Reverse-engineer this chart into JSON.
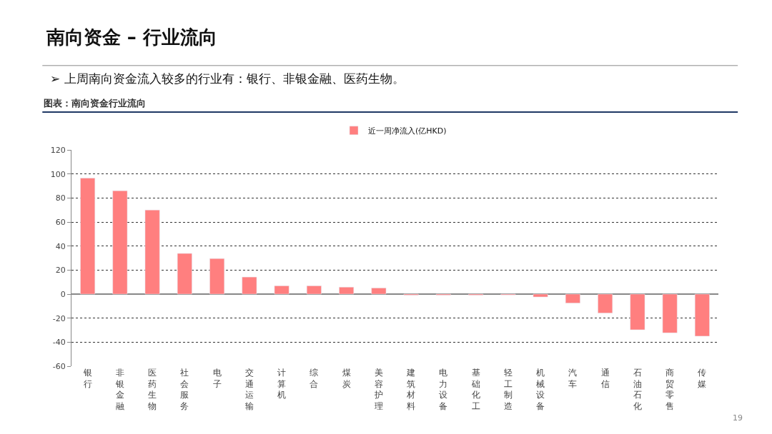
{
  "chart_data": {
    "type": "bar",
    "title": "南向资金 – 行业流向",
    "subtitle": "➢ 上周南向资金流入较多的行业有：银行、非银金融、医药生物。",
    "annotations": [
      "图表：南向资金行业流向",
      "19"
    ],
    "categories": [
      "银行",
      "非银金融",
      "医药生物",
      "社会服务",
      "电子",
      "交通运输",
      "计算机",
      "综合",
      "煤炭",
      "美容护理",
      "建筑材料",
      "电力设备",
      "基础化工",
      "轻工制造",
      "机械设备",
      "汽车",
      "通信",
      "石油石化",
      "商贸零售",
      "传媒"
    ],
    "series": [
      {
        "name": "近一周净流入(亿HKD)",
        "color": "#ff7f7f",
        "values": [
          96.5,
          86,
          70,
          33.8,
          29.6,
          14.2,
          6.9,
          6.9,
          5.8,
          5.1,
          -0.9,
          -0.9,
          -0.9,
          -0.7,
          -2.4,
          -7.5,
          -15.8,
          -29.7,
          -32.3,
          -35
        ]
      }
    ],
    "ylim": [
      -60,
      120
    ],
    "yticks": [
      -60,
      -40,
      -20,
      0,
      20,
      40,
      60,
      80,
      100,
      120
    ],
    "grid": "y",
    "legend": "top"
  }
}
